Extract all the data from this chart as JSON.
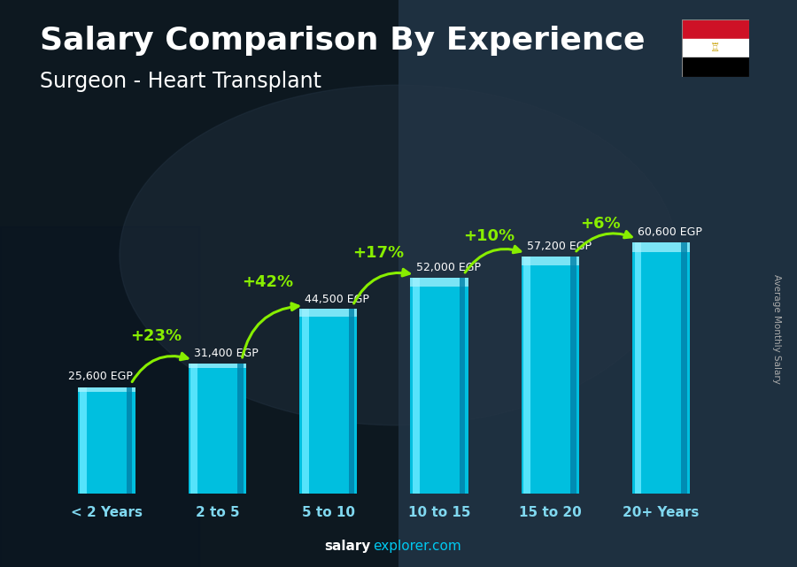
{
  "title": "Salary Comparison By Experience",
  "subtitle": "Surgeon - Heart Transplant",
  "categories": [
    "< 2 Years",
    "2 to 5",
    "5 to 10",
    "10 to 15",
    "15 to 20",
    "20+ Years"
  ],
  "values": [
    25600,
    31400,
    44500,
    52000,
    57200,
    60600
  ],
  "value_labels": [
    "25,600 EGP",
    "31,400 EGP",
    "44,500 EGP",
    "52,000 EGP",
    "57,200 EGP",
    "60,600 EGP"
  ],
  "pct_labels": [
    "+23%",
    "+42%",
    "+17%",
    "+10%",
    "+6%"
  ],
  "bar_color": "#00bfdf",
  "bar_edge_color": "#00dfff",
  "bar_highlight": "#60e8ff",
  "ylabel": "Average Monthly Salary",
  "footer_bold": "salary",
  "footer_normal": "explorer.com",
  "bg_color": "#1c2b38",
  "text_color": "#ffffff",
  "pct_color": "#88ee00",
  "value_text_color": "#ffffff",
  "title_fontsize": 26,
  "subtitle_fontsize": 17,
  "ylim": [
    0,
    78000
  ],
  "bar_width": 0.52,
  "flag_colors": [
    "#ce1126",
    "#ffffff",
    "#000000"
  ]
}
